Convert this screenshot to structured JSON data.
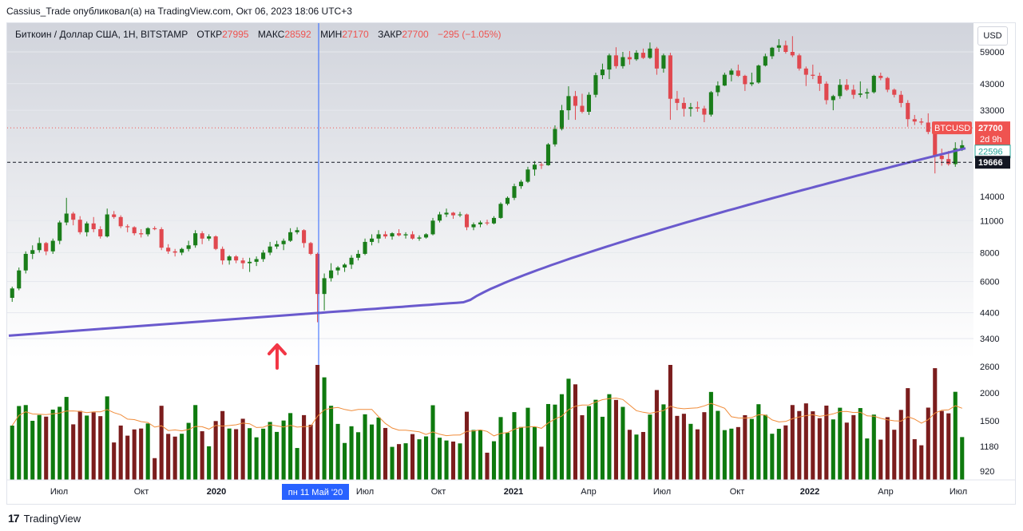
{
  "header": {
    "published_line": "Cassius_Trade опубликовал(а) на TradingView.com, Окт 06, 2023 18:06 UTC+3"
  },
  "legend": {
    "symbol": "Биткоин / Доллар США, 1Н, BITSTAMP",
    "open_label": "ОТКР",
    "open_value": "27995",
    "high_label": "МАКС",
    "high_value": "28592",
    "low_label": "МИН",
    "low_value": "27170",
    "close_label": "ЗАКР",
    "close_value": "27700",
    "change": "−295 (−1.05%)"
  },
  "currency_button": "USD",
  "footer": {
    "brand": "TradingView",
    "logo_text": "17"
  },
  "price_labels": {
    "btcusd_tag": "BTCUSD",
    "last_price": "27700",
    "countdown": "2d 9h",
    "ma_value": "22596",
    "horizontal_level": "19666"
  },
  "crosshair_label": "пн 11 Май '20",
  "colors": {
    "up": "#1a7d1a",
    "down": "#e0484f",
    "vol_up": "#0e7a0e",
    "vol_down": "#7b1d1d",
    "ma": "#6a5acd",
    "vol_ma": "#f08c3a",
    "crosshair": "#2962ff",
    "arrow": "#f23645",
    "last_price_bg": "#ef5350",
    "ma_label_border": "#26a69a",
    "level_label_bg": "#131722"
  },
  "chart_data": {
    "type": "candlestick",
    "scale": "log",
    "price_axis_ticks": [
      59000,
      43000,
      33000,
      27700,
      22596,
      19666,
      14000,
      11000,
      8000,
      6000,
      4400,
      3400,
      2600,
      2000,
      1500,
      1180,
      920
    ],
    "price_axis_tick_labels": [
      "59000",
      "43000",
      "33000",
      "14000",
      "11000",
      "8000",
      "6000",
      "4400",
      "3400",
      "2600",
      "2000",
      "1500",
      "1180",
      "920"
    ],
    "time_axis_labels": [
      "Июл",
      "Окт",
      "2020",
      "Июл",
      "Окт",
      "2021",
      "Апр",
      "Июл",
      "Окт",
      "2022",
      "Апр",
      "Июл"
    ],
    "candles_weekly_approx": [
      [
        5100,
        5700,
        4900,
        5600
      ],
      [
        5600,
        6900,
        5500,
        6700
      ],
      [
        6700,
        8100,
        6500,
        7900
      ],
      [
        7900,
        8600,
        7500,
        8200
      ],
      [
        8200,
        9300,
        8000,
        8800
      ],
      [
        8800,
        8900,
        7800,
        8100
      ],
      [
        8100,
        9200,
        7900,
        9000
      ],
      [
        9000,
        11000,
        8700,
        10800
      ],
      [
        10800,
        13800,
        10500,
        11800
      ],
      [
        11800,
        12000,
        10500,
        11100
      ],
      [
        11100,
        11500,
        9600,
        9800
      ],
      [
        9800,
        10900,
        9400,
        10700
      ],
      [
        10700,
        11400,
        9800,
        10100
      ],
      [
        10100,
        10400,
        9200,
        9400
      ],
      [
        9400,
        12400,
        9300,
        11700
      ],
      [
        11700,
        12100,
        11200,
        11400
      ],
      [
        11400,
        11600,
        10200,
        10400
      ],
      [
        10400,
        10600,
        9800,
        10300
      ],
      [
        10300,
        10400,
        9500,
        9700
      ],
      [
        9700,
        10100,
        9300,
        9600
      ],
      [
        9600,
        10300,
        9400,
        10200
      ],
      [
        10200,
        10400,
        10000,
        10100
      ],
      [
        10100,
        10300,
        8200,
        8400
      ],
      [
        8400,
        8700,
        7900,
        8100
      ],
      [
        8100,
        8300,
        7700,
        8000
      ],
      [
        8000,
        8400,
        7800,
        8300
      ],
      [
        8300,
        9000,
        8100,
        8600
      ],
      [
        8600,
        10000,
        8400,
        9700
      ],
      [
        9700,
        9900,
        8700,
        9200
      ],
      [
        9200,
        9600,
        9000,
        9400
      ],
      [
        9400,
        9500,
        8200,
        8300
      ],
      [
        8300,
        8500,
        7100,
        7400
      ],
      [
        7400,
        7800,
        7100,
        7700
      ],
      [
        7700,
        7800,
        7200,
        7400
      ],
      [
        7400,
        7600,
        6800,
        7200
      ],
      [
        7200,
        7600,
        6600,
        7300
      ],
      [
        7300,
        7700,
        7000,
        7500
      ],
      [
        7500,
        8200,
        7300,
        8000
      ],
      [
        8000,
        8900,
        7800,
        8500
      ],
      [
        8500,
        9000,
        8300,
        8700
      ],
      [
        8700,
        9200,
        8200,
        9000
      ],
      [
        9000,
        10200,
        8900,
        9800
      ],
      [
        9800,
        10300,
        9600,
        10000
      ],
      [
        10000,
        10100,
        8400,
        8800
      ],
      [
        8800,
        8900,
        7800,
        7900
      ],
      [
        7900,
        8000,
        4000,
        5300
      ],
      [
        5300,
        6500,
        4500,
        6200
      ],
      [
        6200,
        7200,
        6000,
        6700
      ],
      [
        6700,
        7000,
        6400,
        6900
      ],
      [
        6900,
        7200,
        6600,
        7100
      ],
      [
        7100,
        7800,
        6800,
        7600
      ],
      [
        7600,
        8200,
        7400,
        7900
      ],
      [
        7900,
        9200,
        7800,
        8900
      ],
      [
        8900,
        9600,
        8600,
        9200
      ],
      [
        9200,
        10000,
        8800,
        9600
      ],
      [
        9600,
        9900,
        9200,
        9400
      ],
      [
        9400,
        9800,
        9100,
        9700
      ],
      [
        9700,
        10100,
        9400,
        9500
      ],
      [
        9500,
        9800,
        9200,
        9600
      ],
      [
        9600,
        9900,
        9100,
        9200
      ],
      [
        9200,
        9500,
        9000,
        9300
      ],
      [
        9300,
        9700,
        9200,
        9600
      ],
      [
        9600,
        11300,
        9500,
        11000
      ],
      [
        11000,
        12000,
        10800,
        11700
      ],
      [
        11700,
        12400,
        11400,
        11900
      ],
      [
        11900,
        12000,
        11200,
        11600
      ],
      [
        11600,
        12000,
        11400,
        11700
      ],
      [
        11700,
        11800,
        10000,
        10300
      ],
      [
        10300,
        10800,
        10000,
        10600
      ],
      [
        10600,
        11000,
        10300,
        10800
      ],
      [
        10800,
        11100,
        10500,
        10700
      ],
      [
        10700,
        11500,
        10600,
        11300
      ],
      [
        11300,
        13200,
        11200,
        13000
      ],
      [
        13000,
        14000,
        12800,
        13800
      ],
      [
        13800,
        15900,
        13500,
        15500
      ],
      [
        15500,
        16500,
        15100,
        16200
      ],
      [
        16200,
        18800,
        16000,
        18300
      ],
      [
        18300,
        19900,
        17200,
        19200
      ],
      [
        19200,
        19600,
        18400,
        19100
      ],
      [
        19100,
        23800,
        19000,
        23500
      ],
      [
        23500,
        28400,
        23000,
        27400
      ],
      [
        27400,
        34800,
        27000,
        33000
      ],
      [
        33000,
        41900,
        30000,
        38000
      ],
      [
        38000,
        40000,
        30000,
        34500
      ],
      [
        34500,
        38900,
        32000,
        32500
      ],
      [
        32500,
        39500,
        31500,
        38500
      ],
      [
        38500,
        48000,
        37500,
        46800
      ],
      [
        46800,
        52500,
        45000,
        49500
      ],
      [
        49500,
        58000,
        45000,
        57000
      ],
      [
        57000,
        61800,
        50000,
        51200
      ],
      [
        51200,
        59000,
        50000,
        56000
      ],
      [
        56000,
        59500,
        52000,
        54800
      ],
      [
        54800,
        60000,
        54000,
        58500
      ],
      [
        58500,
        61000,
        55000,
        55600
      ],
      [
        55600,
        64800,
        55000,
        61000
      ],
      [
        61000,
        62000,
        47000,
        50000
      ],
      [
        50000,
        58000,
        48000,
        57000
      ],
      [
        57000,
        58500,
        30000,
        37000
      ],
      [
        37000,
        40000,
        33000,
        35500
      ],
      [
        35500,
        37500,
        31000,
        33500
      ],
      [
        33500,
        35500,
        31000,
        34000
      ],
      [
        34000,
        36000,
        32500,
        33600
      ],
      [
        33600,
        34500,
        29300,
        31600
      ],
      [
        31600,
        40000,
        31000,
        39500
      ],
      [
        39500,
        44000,
        38000,
        42200
      ],
      [
        42200,
        48000,
        42000,
        47000
      ],
      [
        47000,
        50000,
        44000,
        49000
      ],
      [
        49000,
        52000,
        46000,
        46500
      ],
      [
        46500,
        47000,
        40000,
        42800
      ],
      [
        42800,
        48000,
        42000,
        43500
      ],
      [
        43500,
        52000,
        43000,
        51500
      ],
      [
        51500,
        58000,
        51000,
        56500
      ],
      [
        56500,
        62000,
        55000,
        61500
      ],
      [
        61500,
        67000,
        59000,
        63000
      ],
      [
        63000,
        66000,
        58000,
        59000
      ],
      [
        59000,
        69000,
        56000,
        57000
      ],
      [
        57000,
        58000,
        49000,
        50000
      ],
      [
        50000,
        51000,
        42000,
        47000
      ],
      [
        47000,
        52000,
        45000,
        46500
      ],
      [
        46500,
        48000,
        40000,
        43000
      ],
      [
        43000,
        44000,
        35000,
        36500
      ],
      [
        36500,
        38500,
        33000,
        38000
      ],
      [
        38000,
        45000,
        37000,
        42500
      ],
      [
        42500,
        45000,
        40000,
        40500
      ],
      [
        40500,
        42500,
        37000,
        38500
      ],
      [
        38500,
        44000,
        37500,
        39000
      ],
      [
        39000,
        41000,
        37000,
        39500
      ],
      [
        39500,
        47000,
        39000,
        46500
      ],
      [
        46500,
        48000,
        44500,
        45500
      ],
      [
        45500,
        46000,
        39500,
        40500
      ],
      [
        40500,
        41000,
        37500,
        38500
      ],
      [
        38500,
        40000,
        34000,
        35500
      ],
      [
        35500,
        36500,
        28000,
        30200
      ],
      [
        30200,
        31500,
        28500,
        29500
      ],
      [
        29500,
        30500,
        28500,
        29200
      ],
      [
        29200,
        32000,
        26000,
        26600
      ],
      [
        26600,
        27000,
        17600,
        21000
      ],
      [
        21000,
        22500,
        19000,
        20300
      ],
      [
        20300,
        22000,
        19000,
        19300
      ],
      [
        19300,
        24000,
        18800,
        22600
      ],
      [
        22600,
        24500,
        22000,
        23300
      ]
    ],
    "volume_axis_note": "volume bars plotted in lower pane with moving average",
    "moving_average_label": "22596",
    "horizontal_level": 19666,
    "last_price": 27700
  }
}
